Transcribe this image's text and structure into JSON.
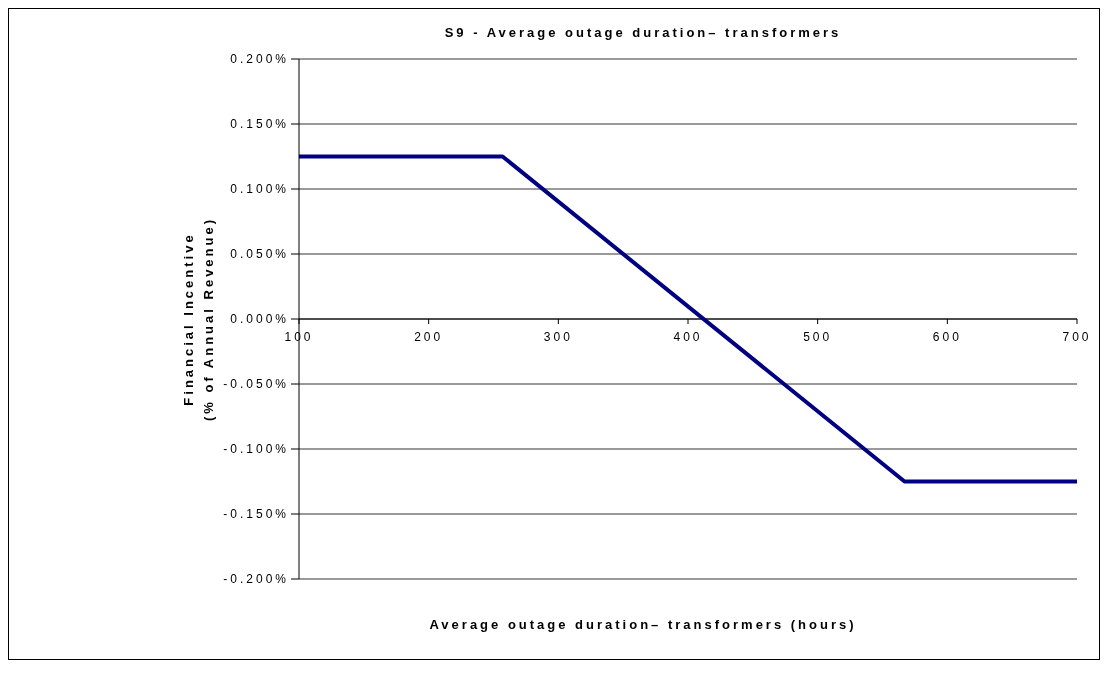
{
  "chart_data": {
    "type": "line",
    "title": "S9 - Average outage duration– transformers",
    "xlabel": "Average outage duration– transformers (hours)",
    "ylabel": "Financial Incentive\n(% of Annual Revenue)",
    "x": [
      100,
      257,
      567,
      700
    ],
    "series": [
      {
        "color": "#000080",
        "values": [
          0.125,
          0.125,
          -0.125,
          -0.125
        ]
      }
    ],
    "xlim": [
      100,
      700
    ],
    "xticks": [
      100,
      200,
      300,
      400,
      500,
      600,
      700
    ],
    "ylim": [
      -0.2,
      0.2
    ],
    "yticks": [
      {
        "value": -0.2,
        "label": "-0.200%"
      },
      {
        "value": -0.15,
        "label": "-0.150%"
      },
      {
        "value": -0.1,
        "label": "-0.100%"
      },
      {
        "value": -0.05,
        "label": "-0.050%"
      },
      {
        "value": 0,
        "label": "0.000%"
      },
      {
        "value": 0.05,
        "label": "0.050%"
      },
      {
        "value": 0.1,
        "label": "0.100%"
      },
      {
        "value": 0.15,
        "label": "0.150%"
      },
      {
        "value": 0.2,
        "label": "0.200%"
      }
    ],
    "grid": "y",
    "marker": "none",
    "line_style": "solid"
  }
}
